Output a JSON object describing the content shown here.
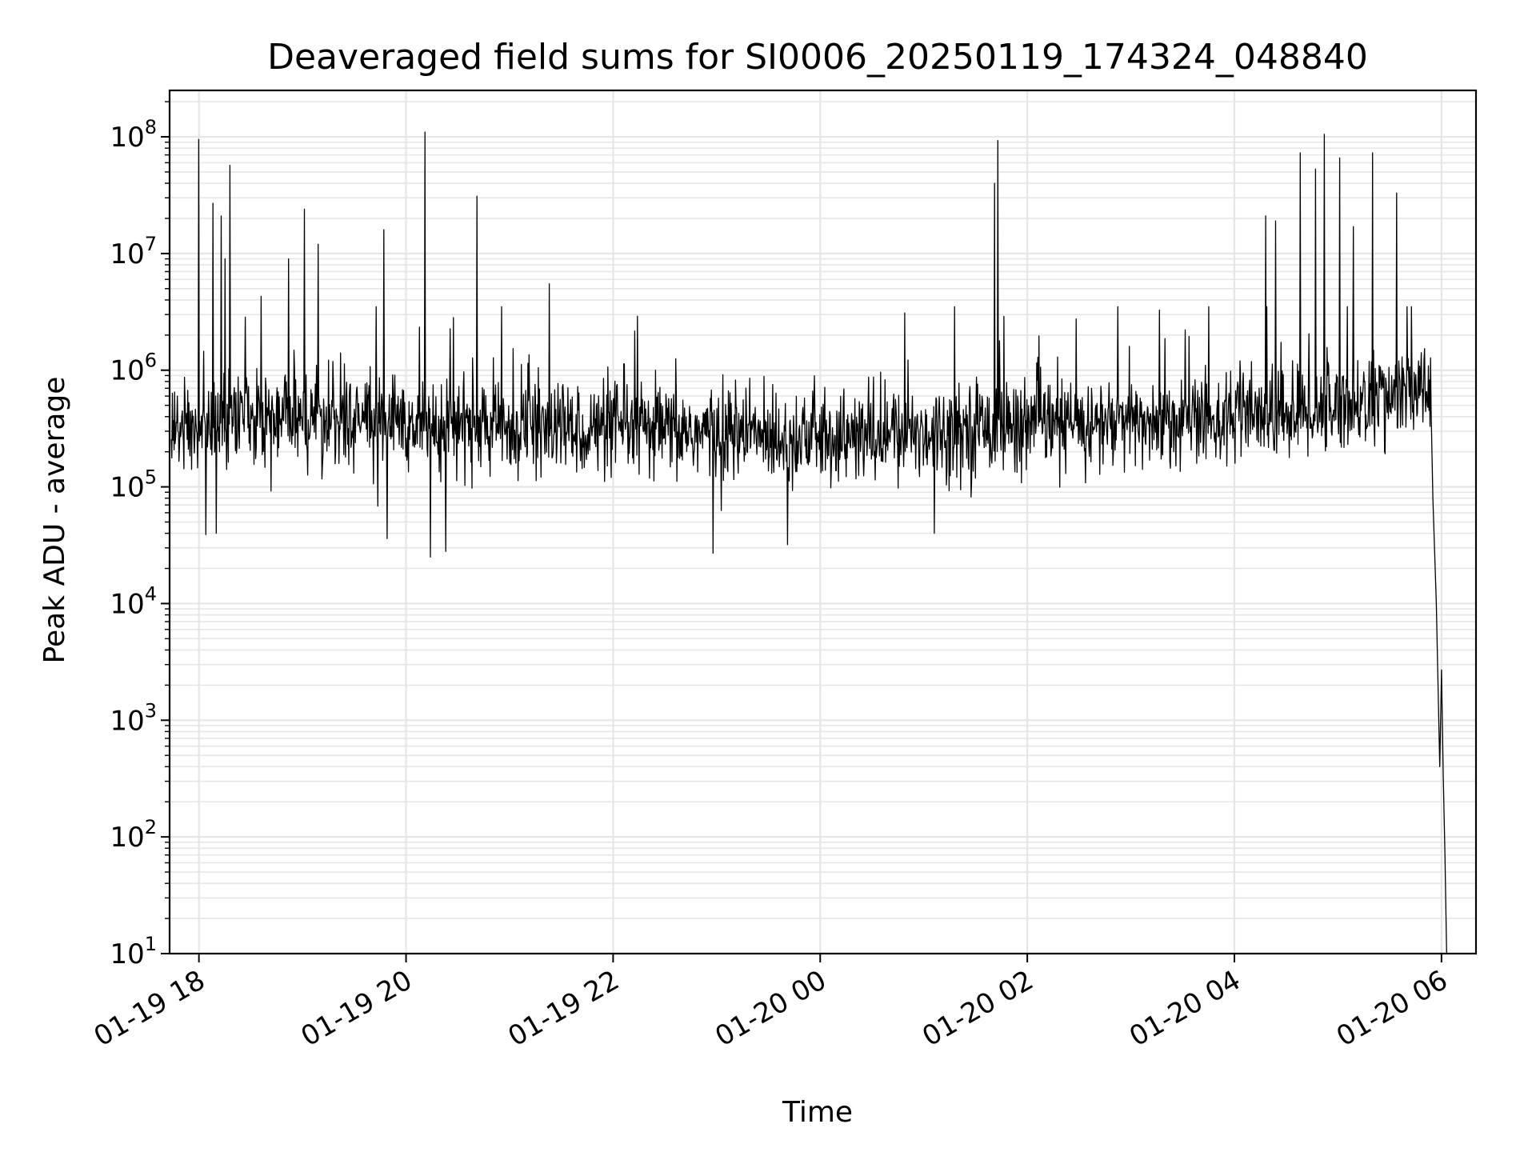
{
  "chart_data": {
    "type": "line",
    "title": "Deaveraged field sums for SI0006_20250119_174324_048840",
    "xlabel": "Time",
    "ylabel": "Peak ADU - average",
    "yscale": "log",
    "ylim": [
      10,
      250000000
    ],
    "xlim": [
      "2025-01-19 17:43",
      "2025-01-20 06:20"
    ],
    "x_ticks": [
      {
        "date": "2025-01-19 18:00",
        "label": "01-19 18"
      },
      {
        "date": "2025-01-19 20:00",
        "label": "01-19 20"
      },
      {
        "date": "2025-01-19 22:00",
        "label": "01-19 22"
      },
      {
        "date": "2025-01-20 00:00",
        "label": "01-20 00"
      },
      {
        "date": "2025-01-20 02:00",
        "label": "01-20 02"
      },
      {
        "date": "2025-01-20 04:00",
        "label": "01-20 04"
      },
      {
        "date": "2025-01-20 06:00",
        "label": "01-20 06"
      }
    ],
    "y_ticks": [
      {
        "value": 10,
        "base": "10",
        "exp": "1"
      },
      {
        "value": 100,
        "base": "10",
        "exp": "2"
      },
      {
        "value": 1000,
        "base": "10",
        "exp": "3"
      },
      {
        "value": 10000,
        "base": "10",
        "exp": "4"
      },
      {
        "value": 100000,
        "base": "10",
        "exp": "5"
      },
      {
        "value": 1000000,
        "base": "10",
        "exp": "6"
      },
      {
        "value": 10000000,
        "base": "10",
        "exp": "7"
      },
      {
        "value": 100000000,
        "base": "10",
        "exp": "8"
      }
    ],
    "grid": true,
    "line_color": "#000000",
    "grid_color": "#e6e6e6",
    "baseline_level": [
      {
        "x": "2025-01-19 17:44",
        "y": 300000
      },
      {
        "x": "2025-01-19 18:30",
        "y": 420000
      },
      {
        "x": "2025-01-19 19:30",
        "y": 380000
      },
      {
        "x": "2025-01-19 21:00",
        "y": 320000
      },
      {
        "x": "2025-01-19 23:00",
        "y": 290000
      },
      {
        "x": "2025-01-20 00:20",
        "y": 260000
      },
      {
        "x": "2025-01-20 01:30",
        "y": 330000
      },
      {
        "x": "2025-01-20 03:00",
        "y": 350000
      },
      {
        "x": "2025-01-20 04:30",
        "y": 420000
      },
      {
        "x": "2025-01-20 05:50",
        "y": 650000
      }
    ],
    "spikes": [
      {
        "x": "2025-01-19 18:00",
        "y": 95000000
      },
      {
        "x": "2025-01-19 18:08",
        "y": 27000000
      },
      {
        "x": "2025-01-19 18:13",
        "y": 21000000
      },
      {
        "x": "2025-01-19 18:15",
        "y": 9000000
      },
      {
        "x": "2025-01-19 18:18",
        "y": 57000000
      },
      {
        "x": "2025-01-19 18:36",
        "y": 4300000
      },
      {
        "x": "2025-01-19 18:52",
        "y": 9000000
      },
      {
        "x": "2025-01-19 19:01",
        "y": 24000000
      },
      {
        "x": "2025-01-19 19:09",
        "y": 12000000
      },
      {
        "x": "2025-01-19 19:47",
        "y": 16000000
      },
      {
        "x": "2025-01-19 20:11",
        "y": 110000000
      },
      {
        "x": "2025-01-19 20:41",
        "y": 31000000
      },
      {
        "x": "2025-01-19 21:23",
        "y": 5500000
      },
      {
        "x": "2025-01-19 22:14",
        "y": 2900000
      },
      {
        "x": "2025-01-20 01:41",
        "y": 40000000
      },
      {
        "x": "2025-01-20 01:43",
        "y": 93000000
      },
      {
        "x": "2025-01-20 04:18",
        "y": 21000000
      },
      {
        "x": "2025-01-20 04:24",
        "y": 19000000
      },
      {
        "x": "2025-01-20 04:38",
        "y": 73000000
      },
      {
        "x": "2025-01-20 04:47",
        "y": 53000000
      },
      {
        "x": "2025-01-20 04:52",
        "y": 105000000
      },
      {
        "x": "2025-01-20 05:01",
        "y": 66000000
      },
      {
        "x": "2025-01-20 05:09",
        "y": 17000000
      },
      {
        "x": "2025-01-20 05:20",
        "y": 73000000
      },
      {
        "x": "2025-01-20 05:34",
        "y": 33000000
      }
    ],
    "dips": [
      {
        "x": "2025-01-19 18:04",
        "y": 39000
      },
      {
        "x": "2025-01-19 18:10",
        "y": 40000
      },
      {
        "x": "2025-01-19 19:49",
        "y": 36000
      },
      {
        "x": "2025-01-19 20:14",
        "y": 25000
      },
      {
        "x": "2025-01-19 20:23",
        "y": 28000
      },
      {
        "x": "2025-01-19 22:58",
        "y": 27000
      },
      {
        "x": "2025-01-19 23:41",
        "y": 32000
      },
      {
        "x": "2025-01-20 01:06",
        "y": 40000
      }
    ],
    "tail_drop": [
      {
        "x": "2025-01-20 05:54",
        "y": 600000
      },
      {
        "x": "2025-01-20 05:55",
        "y": 80000
      },
      {
        "x": "2025-01-20 05:57",
        "y": 10000
      },
      {
        "x": "2025-01-20 05:59",
        "y": 400
      },
      {
        "x": "2025-01-20 06:00",
        "y": 2700
      },
      {
        "x": "2025-01-20 06:01",
        "y": 350
      },
      {
        "x": "2025-01-20 06:02",
        "y": 70
      },
      {
        "x": "2025-01-20 06:03",
        "y": 10
      }
    ]
  }
}
